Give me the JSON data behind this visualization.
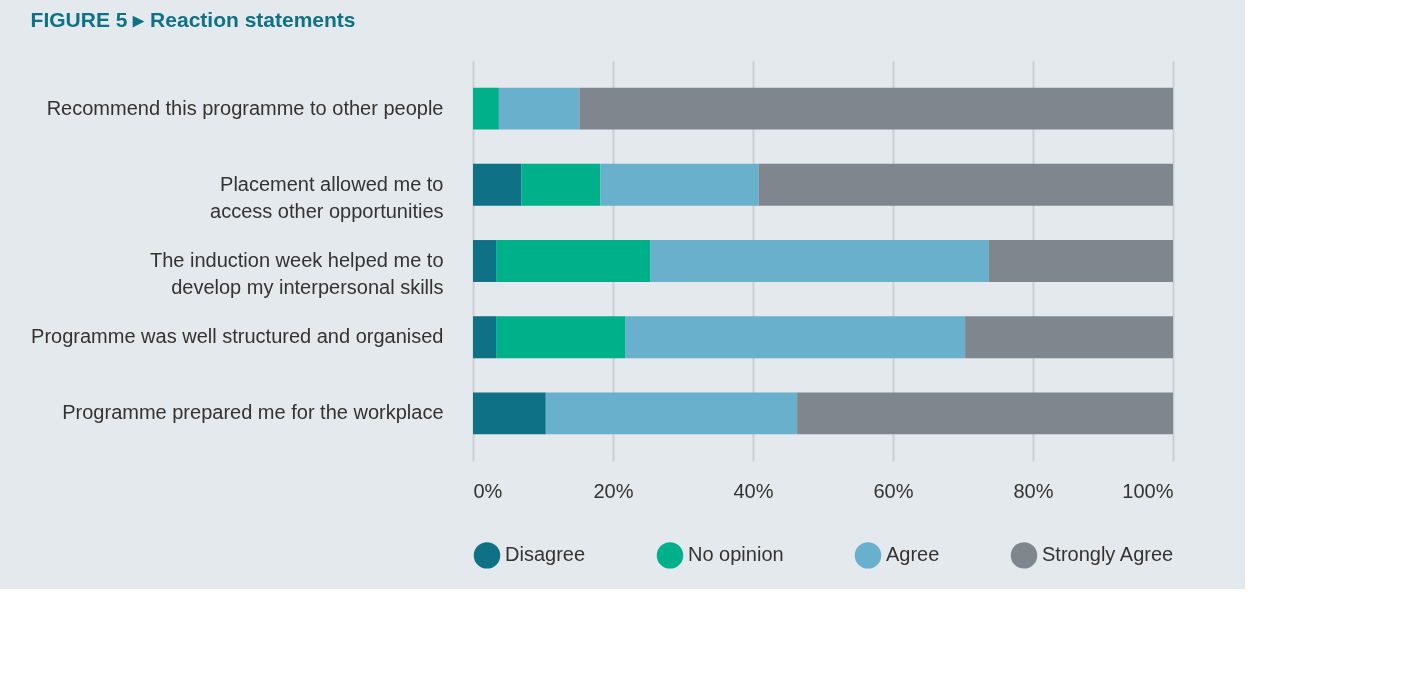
{
  "chart_data": {
    "type": "bar",
    "orientation": "horizontal",
    "stacked": true,
    "title": "FIGURE 5 ▸ Reaction statements",
    "categories": [
      "Recommend this programme to other people",
      "Placement allowed me to\naccess other opportunities",
      "The induction week helped me to\ndevelop my interpersonal skills",
      "Programme was well structured and organised",
      "Programme prepared me for the workplace"
    ],
    "series": [
      {
        "name": "Disagree",
        "color": "#0f7185",
        "values": [
          0,
          6.9,
          3.3,
          3.3,
          10.4
        ]
      },
      {
        "name": "No opinion",
        "color": "#00b08a",
        "values": [
          3.7,
          11.3,
          22.0,
          18.5,
          0
        ]
      },
      {
        "name": "Agree",
        "color": "#68b0cb",
        "values": [
          11.5,
          22.6,
          48.4,
          48.5,
          35.9
        ]
      },
      {
        "name": "Strongly Agree",
        "color": "#7f868e",
        "values": [
          84.8,
          59.2,
          26.3,
          29.7,
          53.7
        ]
      }
    ],
    "xlim": [
      0,
      100
    ],
    "xticks": [
      {
        "value": 0,
        "label": "0%"
      },
      {
        "value": 20,
        "label": "20%"
      },
      {
        "value": 40,
        "label": "40%"
      },
      {
        "value": 60,
        "label": "60%"
      },
      {
        "value": 80,
        "label": "80%"
      },
      {
        "value": 100,
        "label": "100%"
      }
    ],
    "grid": "x",
    "legend": "bottom"
  }
}
